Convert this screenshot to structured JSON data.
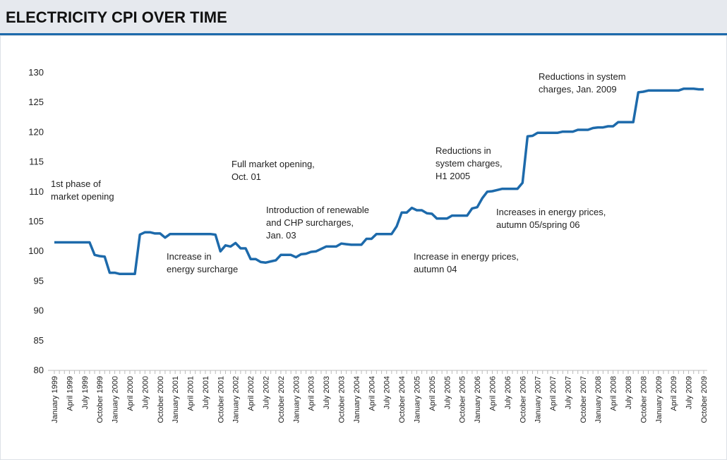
{
  "chart_data": {
    "type": "line",
    "title": "ELECTRICITY CPI OVER TIME",
    "categories": [
      "January 1999",
      null,
      null,
      "April 1999",
      null,
      null,
      "July 1999",
      null,
      null,
      "October 1999",
      null,
      null,
      "January 2000",
      null,
      null,
      "April 2000",
      null,
      null,
      "July 2000",
      null,
      null,
      "October 2000",
      null,
      null,
      "January 2001",
      null,
      null,
      "April 2001",
      null,
      null,
      "July 2001",
      null,
      null,
      "October 2001",
      null,
      null,
      "January 2002",
      null,
      null,
      "April 2002",
      null,
      null,
      "July 2002",
      null,
      null,
      "October 2002",
      null,
      null,
      "January 2003",
      null,
      null,
      "April 2003",
      null,
      null,
      "July 2003",
      null,
      null,
      "October 2003",
      null,
      null,
      "January 2004",
      null,
      null,
      "April 2004",
      null,
      null,
      "July 2004",
      null,
      null,
      "October 2004",
      null,
      null,
      "January 2005",
      null,
      null,
      "April 2005",
      null,
      null,
      "July 2005",
      null,
      null,
      "October 2005",
      null,
      null,
      "January 2006",
      null,
      null,
      "April 2006",
      null,
      null,
      "July 2006",
      null,
      null,
      "October 2006",
      null,
      null,
      "January 2007",
      null,
      null,
      "April 2007",
      null,
      null,
      "July 2007",
      null,
      null,
      "October 2007",
      null,
      null,
      "January 2008",
      null,
      null,
      "April 2008",
      null,
      null,
      "July 2008",
      null,
      null,
      "October 2008",
      null,
      null,
      "January 2009",
      null,
      null,
      "April 2009",
      null,
      null,
      "July 2009",
      null,
      null,
      "October 2009"
    ],
    "values": [
      101.5,
      101.5,
      101.5,
      101.5,
      101.5,
      101.5,
      101.5,
      101.5,
      99.4,
      99.2,
      99.1,
      96.4,
      96.4,
      96.2,
      96.2,
      96.2,
      96.2,
      102.8,
      103.2,
      103.2,
      103.0,
      103.0,
      102.3,
      102.9,
      102.9,
      102.9,
      102.9,
      102.9,
      102.9,
      102.9,
      102.9,
      102.9,
      102.8,
      100.0,
      101.0,
      100.8,
      101.4,
      100.5,
      100.5,
      98.7,
      98.7,
      98.2,
      98.1,
      98.3,
      98.5,
      99.4,
      99.4,
      99.4,
      99.0,
      99.5,
      99.6,
      99.9,
      100.0,
      100.4,
      100.8,
      100.8,
      100.8,
      101.3,
      101.2,
      101.1,
      101.1,
      101.1,
      102.1,
      102.1,
      102.9,
      102.9,
      102.9,
      102.9,
      104.2,
      106.5,
      106.5,
      107.3,
      106.9,
      106.9,
      106.4,
      106.3,
      105.5,
      105.5,
      105.5,
      106.0,
      106.0,
      106.0,
      106.0,
      107.2,
      107.4,
      108.9,
      110.0,
      110.1,
      110.3,
      110.5,
      110.5,
      110.5,
      110.5,
      111.5,
      119.3,
      119.4,
      119.9,
      119.9,
      119.9,
      119.9,
      119.9,
      120.1,
      120.1,
      120.1,
      120.4,
      120.4,
      120.4,
      120.7,
      120.8,
      120.8,
      121.0,
      121.0,
      121.7,
      121.7,
      121.7,
      121.7,
      126.7,
      126.8,
      127.0,
      127.0,
      127.0,
      127.0,
      127.0,
      127.0,
      127.0,
      127.3,
      127.3,
      127.3,
      127.2,
      127.2
    ],
    "color": "#1d6aab",
    "ylim": [
      80,
      130
    ],
    "yticks": [
      80,
      85,
      90,
      95,
      100,
      105,
      110,
      115,
      120,
      125,
      130
    ],
    "grid": false,
    "annotations": [
      [
        "1st phase of",
        "market opening"
      ],
      [
        "Increase in",
        "energy surcharge"
      ],
      [
        "Full market opening,",
        "Oct. 01"
      ],
      [
        "Introduction of renewable",
        "and CHP surcharges,",
        "Jan. 03"
      ],
      [
        "Increase in energy prices,",
        "autumn 04"
      ],
      [
        "Reductions in",
        "system charges,",
        "H1 2005"
      ],
      [
        "Increases in energy prices,",
        "autumn 05/spring 06"
      ],
      [
        "Reductions in system",
        "charges, Jan. 2009"
      ]
    ]
  }
}
